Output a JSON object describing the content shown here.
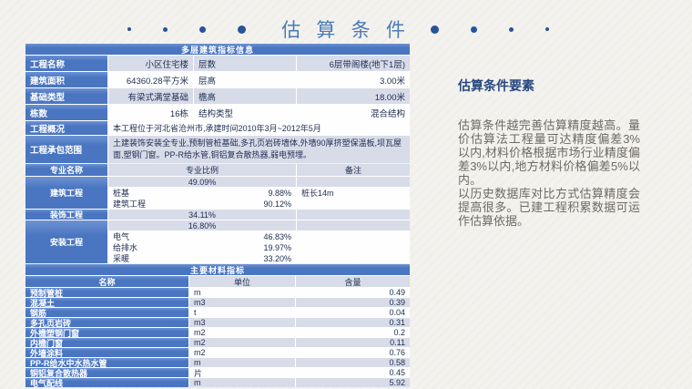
{
  "slide": {
    "title": "估 算 条 件",
    "accent_color": "#24549b",
    "title_color": "#4b7ab8",
    "table_blue": "#4a76c1",
    "band_color": "#d8dce9"
  },
  "table_top": {
    "header": "多层建筑指标信息",
    "rows": [
      {
        "label": "工程名称",
        "value": "小区住宅楼",
        "key2": "层数",
        "value2": "6层带阁楼(地下1层)"
      },
      {
        "label": "建筑面积",
        "value": "64360.28平方米",
        "key2": "层高",
        "value2": "3.00米"
      },
      {
        "label": "基础类型",
        "value": "有梁式满堂基础",
        "key2": "檐高",
        "value2": "18.00米"
      },
      {
        "label": "栋数",
        "value": "16栋",
        "key2": "结构类型",
        "value2": "混合结构"
      }
    ],
    "overview": {
      "label": "工程概况",
      "value": "本工程位于河北省沧州市,承建时间2010年3月~2012年5月"
    },
    "scope": {
      "label": "工程承包范围",
      "value": "土建装饰安装全专业,预制管桩基础,多孔页岩砖墙体,外墙90厚挤塑保温板,坝瓦屋面,塑钢门窗。PP-R给水管,铜铝复合散热器,弱电预埋。"
    }
  },
  "table_ratio": {
    "headers": {
      "name": "专业名称",
      "ratio": "专业比例",
      "note": "备注"
    },
    "building": {
      "label": "建筑工程",
      "total": "49.09%",
      "subs": [
        {
          "name": "桩基",
          "pct": "9.88%",
          "note": "桩长14m"
        },
        {
          "name": "建筑工程",
          "pct": "90.12%",
          "note": ""
        }
      ]
    },
    "decoration": {
      "label": "装饰工程",
      "total": "34.11%"
    },
    "installation": {
      "label": "安装工程",
      "total": "16.80%",
      "subs": [
        {
          "name": "电气",
          "pct": "46.83%",
          "note": ""
        },
        {
          "name": "给排水",
          "pct": "19.97%",
          "note": ""
        },
        {
          "name": "采暖",
          "pct": "33.20%",
          "note": ""
        }
      ]
    }
  },
  "table_materials": {
    "header": "主要材料指标",
    "columns": {
      "name": "名称",
      "unit": "单位",
      "qty": "含量"
    },
    "rows": [
      {
        "name": "预制管桩",
        "unit": "m",
        "qty": "0.49"
      },
      {
        "name": "混凝土",
        "unit": "m3",
        "qty": "0.39"
      },
      {
        "name": "钢筋",
        "unit": "t",
        "qty": "0.04"
      },
      {
        "name": "多孔页岩砖",
        "unit": "m3",
        "qty": "0.31"
      },
      {
        "name": "外檐塑钢门窗",
        "unit": "m2",
        "qty": "0.2"
      },
      {
        "name": "内檐门窗",
        "unit": "m2",
        "qty": "0.11"
      },
      {
        "name": "外墙涂料",
        "unit": "m2",
        "qty": "0.76"
      },
      {
        "name": "PP-R给水中水热水管",
        "unit": "m",
        "qty": "0.58"
      },
      {
        "name": "铜铝复合散热器",
        "unit": "片",
        "qty": "0.45"
      },
      {
        "name": "电气配线",
        "unit": "m",
        "qty": "5.92"
      }
    ]
  },
  "side_panel": {
    "heading": "估算条件要素",
    "paragraphs": [
      "估算条件越完善估算精度越高。量价估算法工程量可达精度偏差3%以内,材料价格根据市场行业精度偏差3%以内,地方材料价格偏差5%以内。",
      "以历史数据库对比方式估算精度会提高很多。已建工程积累数据可运作估算依据。"
    ]
  }
}
